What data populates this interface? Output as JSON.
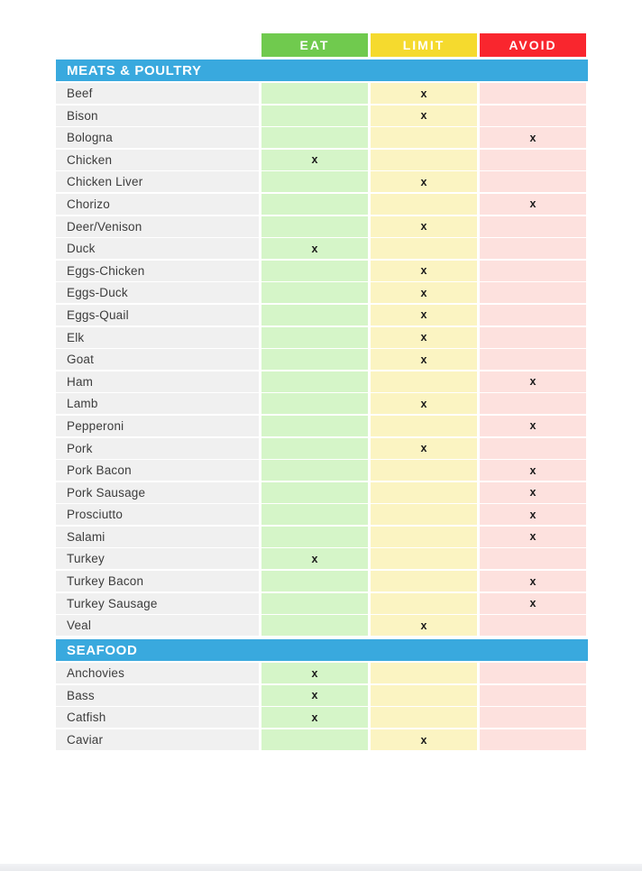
{
  "page": {
    "background": "#ffffff",
    "next_page_edge_color": "#e9ebee"
  },
  "colors": {
    "section_header": "#39a9de",
    "label_cell": "#f0f0f0"
  },
  "mark_glyph": "x",
  "legend_columns": [
    {
      "id": "eat",
      "label": "EAT",
      "header_color": "#70ca4e",
      "cell_color": "#d5f5c8"
    },
    {
      "id": "limit",
      "label": "LIMIT",
      "header_color": "#f5da2e",
      "cell_color": "#fbf4c2"
    },
    {
      "id": "avoid",
      "label": "AVOID",
      "header_color": "#f9262e",
      "cell_color": "#fde1de"
    }
  ],
  "sections": [
    {
      "title": "MEATS & POULTRY",
      "rows": [
        {
          "label": "Beef",
          "mark": "limit"
        },
        {
          "label": "Bison",
          "mark": "limit"
        },
        {
          "label": "Bologna",
          "mark": "avoid"
        },
        {
          "label": "Chicken",
          "mark": "eat"
        },
        {
          "label": "Chicken Liver",
          "mark": "limit"
        },
        {
          "label": "Chorizo",
          "mark": "avoid"
        },
        {
          "label": "Deer/Venison",
          "mark": "limit"
        },
        {
          "label": "Duck",
          "mark": "eat"
        },
        {
          "label": "Eggs-Chicken",
          "mark": "limit"
        },
        {
          "label": "Eggs-Duck",
          "mark": "limit"
        },
        {
          "label": "Eggs-Quail",
          "mark": "limit"
        },
        {
          "label": "Elk",
          "mark": "limit"
        },
        {
          "label": "Goat",
          "mark": "limit"
        },
        {
          "label": "Ham",
          "mark": "avoid"
        },
        {
          "label": "Lamb",
          "mark": "limit"
        },
        {
          "label": "Pepperoni",
          "mark": "avoid"
        },
        {
          "label": "Pork",
          "mark": "limit"
        },
        {
          "label": "Pork Bacon",
          "mark": "avoid"
        },
        {
          "label": "Pork Sausage",
          "mark": "avoid"
        },
        {
          "label": "Prosciutto",
          "mark": "avoid"
        },
        {
          "label": "Salami",
          "mark": "avoid"
        },
        {
          "label": "Turkey",
          "mark": "eat"
        },
        {
          "label": "Turkey Bacon",
          "mark": "avoid"
        },
        {
          "label": "Turkey Sausage",
          "mark": "avoid"
        },
        {
          "label": "Veal",
          "mark": "limit"
        }
      ]
    },
    {
      "title": "SEAFOOD",
      "rows": [
        {
          "label": "Anchovies",
          "mark": "eat"
        },
        {
          "label": "Bass",
          "mark": "eat"
        },
        {
          "label": "Catfish",
          "mark": "eat"
        },
        {
          "label": "Caviar",
          "mark": "limit"
        }
      ]
    }
  ]
}
